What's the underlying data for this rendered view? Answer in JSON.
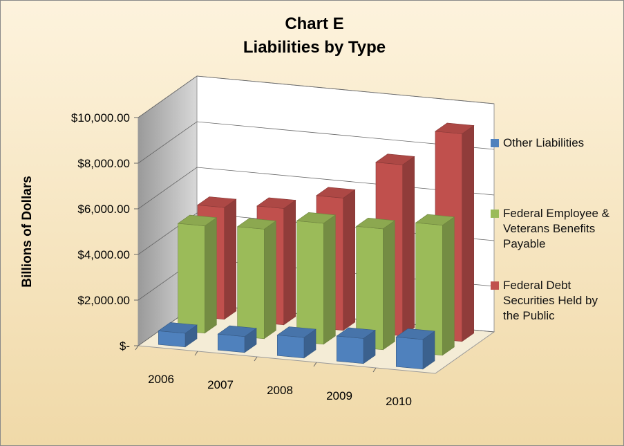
{
  "chart_data": {
    "type": "bar3d",
    "title": "Chart E",
    "subtitle": "Liabilities by Type",
    "y_label": "Billions of Dollars",
    "categories": [
      "2006",
      "2007",
      "2008",
      "2009",
      "2010"
    ],
    "series": [
      {
        "name": "Other Liabilities",
        "color": "#4f81bd",
        "values": [
          600,
          700,
          900,
          1100,
          1300
        ]
      },
      {
        "name": "Federal Employee & Veterans Benefits Payable",
        "color": "#9bbb59",
        "values": [
          4700,
          4800,
          5300,
          5300,
          5700
        ]
      },
      {
        "name": "Federal Debt Securities Held by the Public",
        "color": "#c0504d",
        "values": [
          4900,
          5100,
          5800,
          7500,
          9100
        ]
      }
    ],
    "ylim": [
      0,
      10000
    ],
    "yticks": [
      {
        "value": 0,
        "label": "$-"
      },
      {
        "value": 2000,
        "label": "$2,000.00"
      },
      {
        "value": 4000,
        "label": "$4,000.00"
      },
      {
        "value": 6000,
        "label": "$6,000.00"
      },
      {
        "value": 8000,
        "label": "$8,000.00"
      },
      {
        "value": 10000,
        "label": "$10,000.00"
      }
    ],
    "grid": true,
    "legend": "right"
  }
}
